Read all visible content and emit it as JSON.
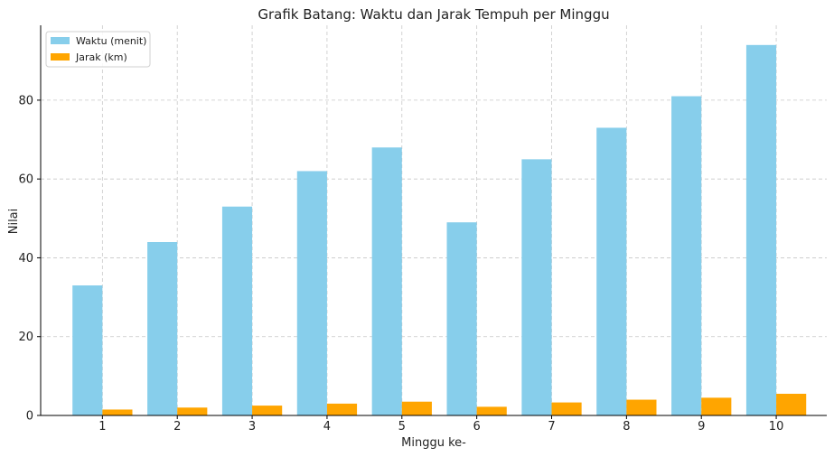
{
  "chart_data": {
    "type": "bar",
    "title": "Grafik Batang: Waktu dan Jarak Tempuh per Minggu",
    "xlabel": "Minggu ke-",
    "ylabel": "Nilai",
    "categories": [
      "1",
      "2",
      "3",
      "4",
      "5",
      "6",
      "7",
      "8",
      "9",
      "10"
    ],
    "series": [
      {
        "name": "Waktu (menit)",
        "color": "#87CEEB",
        "values": [
          33,
          44,
          53,
          62,
          68,
          49,
          65,
          73,
          81,
          94
        ]
      },
      {
        "name": "Jarak (km)",
        "color": "#FFA500",
        "values": [
          1.5,
          2.0,
          2.5,
          3.0,
          3.5,
          2.2,
          3.3,
          4.0,
          4.5,
          5.5
        ]
      }
    ],
    "ylim": [
      0,
      99
    ],
    "yticks": [
      0,
      20,
      40,
      60,
      80
    ],
    "grid": true,
    "legend_position": "top-left"
  }
}
